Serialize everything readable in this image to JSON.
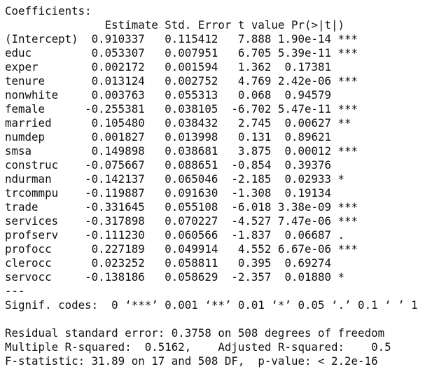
{
  "output": {
    "coefficients_title": "Coefficients:",
    "column_header": "               Estimate Std. Error t value Pr(>|t|)    ",
    "rows": [
      "(Intercept)  0.910337   0.115412   7.888 1.90e-14 ***",
      "educ         0.053307   0.007951   6.705 5.39e-11 ***",
      "exper        0.002172   0.001594   1.362  0.17381    ",
      "tenure       0.013124   0.002752   4.769 2.42e-06 ***",
      "nonwhite     0.003763   0.055313   0.068  0.94579    ",
      "female      -0.255381   0.038105  -6.702 5.47e-11 ***",
      "married      0.105480   0.038432   2.745  0.00627 ** ",
      "numdep       0.001827   0.013998   0.131  0.89621    ",
      "smsa         0.149898   0.038681   3.875  0.00012 ***",
      "construc    -0.075667   0.088651  -0.854  0.39376    ",
      "ndurman     -0.142137   0.065046  -2.185  0.02933 *  ",
      "trcommpu    -0.119887   0.091630  -1.308  0.19134    ",
      "trade       -0.331645   0.055108  -6.018 3.38e-09 ***",
      "services    -0.317898   0.070227  -4.527 7.47e-06 ***",
      "profserv    -0.111230   0.060566  -1.837  0.06687 .  ",
      "profocc      0.227189   0.049914   4.552 6.67e-06 ***",
      "clerocc      0.023252   0.058811   0.395  0.69274    ",
      "servocc     -0.138186   0.058629  -2.357  0.01880 *  "
    ],
    "separator": "---",
    "signif_codes": "Signif. codes:  0 ‘***’ 0.001 ‘**’ 0.01 ‘*’ 0.05 ‘.’ 0.1 ‘ ’ 1",
    "blank": " ",
    "residual_se": "Residual standard error: 0.3758 on 508 degrees of freedom",
    "r_squared": "Multiple R-squared:  0.5162,\tAdjusted R-squared:    0.5 ",
    "f_statistic": "F-statistic: 31.89 on 17 and 508 DF,  p-value: < 2.2e-16"
  }
}
